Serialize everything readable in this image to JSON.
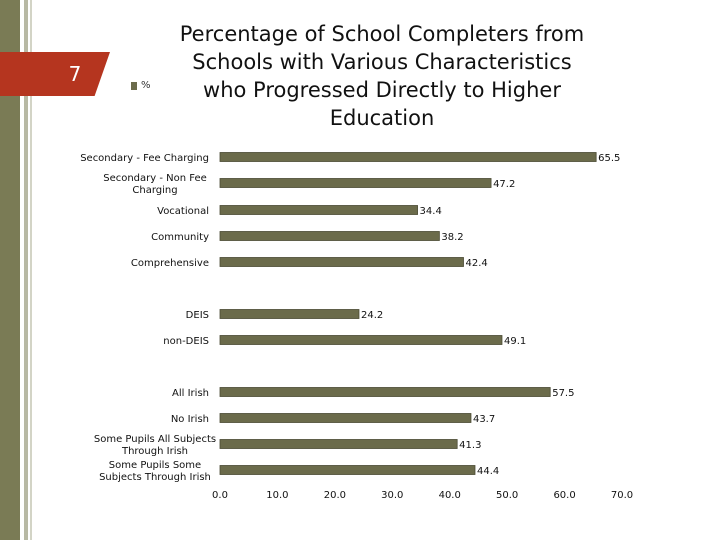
{
  "slide": {
    "number": "7"
  },
  "colors": {
    "bar": "#6b6b4b",
    "bar_stroke": "#4a4a33",
    "accent": "#b5351f",
    "side_bar": "#7a7b55"
  },
  "chart_data": {
    "type": "bar",
    "orientation": "horizontal",
    "title": "Percentage of School Completers from Schools with Various Characteristics who Progressed Directly to Higher Education",
    "title_lines": [
      "Percentage of School Completers from",
      "Schools with Various Characteristics",
      "who Progressed Directly to Higher",
      "Education"
    ],
    "legend": [
      {
        "name": "%"
      }
    ],
    "categories": [
      {
        "label_lines": [
          "Secondary - Fee Charging"
        ],
        "value": 65.5,
        "label": "65.5"
      },
      {
        "label_lines": [
          "Secondary - Non Fee",
          "Charging"
        ],
        "value": 47.2,
        "label": "47.2"
      },
      {
        "label_lines": [
          "Vocational"
        ],
        "value": 34.4,
        "label": "34.4"
      },
      {
        "label_lines": [
          "Community"
        ],
        "value": 38.2,
        "label": "38.2"
      },
      {
        "label_lines": [
          "Comprehensive"
        ],
        "value": 42.4,
        "label": "42.4"
      },
      {
        "label_lines": [
          "DEIS"
        ],
        "value": 24.2,
        "label": "24.2"
      },
      {
        "label_lines": [
          "non-DEIS"
        ],
        "value": 49.1,
        "label": "49.1"
      },
      {
        "label_lines": [
          "All Irish"
        ],
        "value": 57.5,
        "label": "57.5"
      },
      {
        "label_lines": [
          "No Irish"
        ],
        "value": 43.7,
        "label": "43.7"
      },
      {
        "label_lines": [
          "Some Pupils All Subjects",
          "Through Irish"
        ],
        "value": 41.3,
        "label": "41.3"
      },
      {
        "label_lines": [
          "Some Pupils Some",
          "Subjects Through Irish"
        ],
        "value": 44.4,
        "label": "44.4"
      }
    ],
    "x_ticks": [
      "0.0",
      "10.0",
      "20.0",
      "30.0",
      "40.0",
      "50.0",
      "60.0",
      "70.0"
    ],
    "xlim": [
      0,
      70
    ],
    "grid": false
  }
}
